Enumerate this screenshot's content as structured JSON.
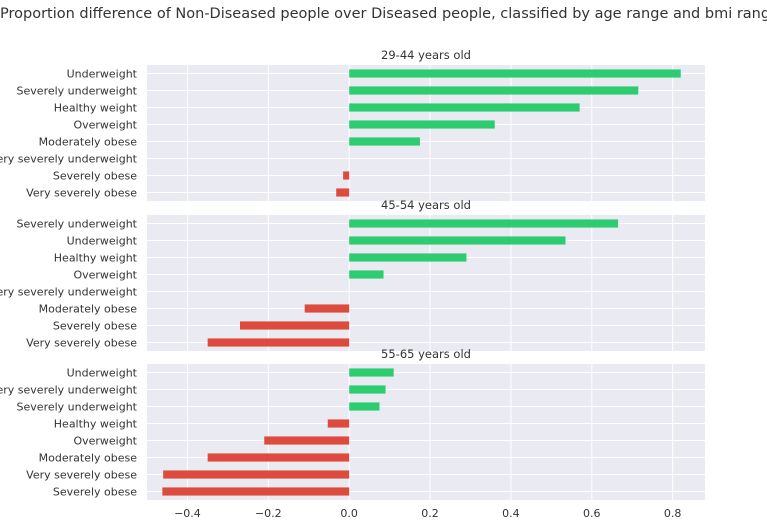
{
  "chart_data": {
    "type": "bar",
    "orientation": "horizontal",
    "title": "Proportion difference of Non-Diseased people over Diseased people, classified by age range and bmi range",
    "xlim": [
      -0.5,
      0.88
    ],
    "xticks": [
      "−0.4",
      "−0.2",
      "0.0",
      "0.2",
      "0.4",
      "0.6",
      "0.8"
    ],
    "xtick_values": [
      -0.4,
      -0.2,
      0.0,
      0.2,
      0.4,
      0.6,
      0.8
    ],
    "grid": true,
    "colors": {
      "positive": "#2ecc71",
      "negative": "#dd4b3e",
      "panel_bg": "#eaeaf2",
      "grid": "#ffffff",
      "text": "#333333"
    },
    "panels": [
      {
        "title": "29-44 years old",
        "categories": [
          "Underweight",
          "Severely underweight",
          "Healthy weight",
          "Overweight",
          "Moderately obese",
          "Very severely underweight",
          "Severely obese",
          "Very severely obese"
        ],
        "values": [
          0.82,
          0.715,
          0.57,
          0.36,
          0.175,
          0.0,
          -0.015,
          -0.032
        ]
      },
      {
        "title": "45-54 years old",
        "categories": [
          "Severely underweight",
          "Underweight",
          "Healthy weight",
          "Overweight",
          "Very severely underweight",
          "Moderately obese",
          "Severely obese",
          "Very severely obese"
        ],
        "values": [
          0.665,
          0.535,
          0.29,
          0.085,
          0.0,
          -0.11,
          -0.27,
          -0.35
        ]
      },
      {
        "title": "55-65 years old",
        "categories": [
          "Underweight",
          "Very severely underweight",
          "Severely underweight",
          "Healthy weight",
          "Overweight",
          "Moderately obese",
          "Very severely obese",
          "Severely obese"
        ],
        "values": [
          0.11,
          0.09,
          0.075,
          -0.053,
          -0.21,
          -0.35,
          -0.46,
          -0.462
        ]
      }
    ]
  }
}
